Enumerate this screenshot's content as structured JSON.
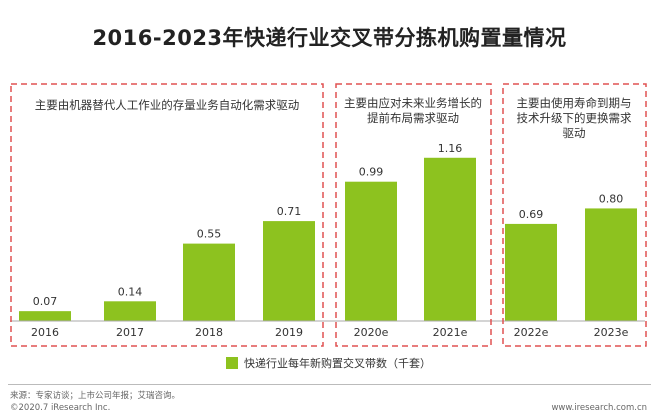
{
  "title": "2016-2023年快递行业交叉带分拣机购置量情况",
  "chart_data": {
    "type": "bar",
    "title": "2016-2023年快递行业交叉带分拣机购置量情况",
    "categories": [
      "2016",
      "2017",
      "2018",
      "2019",
      "2020e",
      "2021e",
      "2022e",
      "2023e"
    ],
    "series": [
      {
        "name": "快递行业每年新购置交叉带数（千套）",
        "values": [
          0.07,
          0.14,
          0.55,
          0.71,
          0.99,
          1.16,
          0.69,
          0.8
        ]
      }
    ],
    "ylim": [
      0,
      1.4
    ],
    "grid": false,
    "legend_position": "bottom",
    "bar_color": "#8dc21f",
    "annotations": [
      {
        "text": "主要由机器替代人工作业的存量业务自动化需求驱动",
        "categories": [
          "2016",
          "2017",
          "2018",
          "2019"
        ]
      },
      {
        "text": "主要由应对未来业务增长的提前布局需求驱动",
        "categories": [
          "2020e",
          "2021e"
        ]
      },
      {
        "text": "主要由使用寿命到期与技术升级下的更换需求驱动",
        "categories": [
          "2022e",
          "2023e"
        ]
      }
    ]
  },
  "legend": {
    "label": "快递行业每年新购置交叉带数（千套）",
    "color": "#8dc21f"
  },
  "footer": {
    "source": "来源：专家访谈；上市公司年报；艾瑞咨询。",
    "copyright": "©2020.7 iResearch Inc.",
    "website": "www.iresearch.com.cn"
  }
}
